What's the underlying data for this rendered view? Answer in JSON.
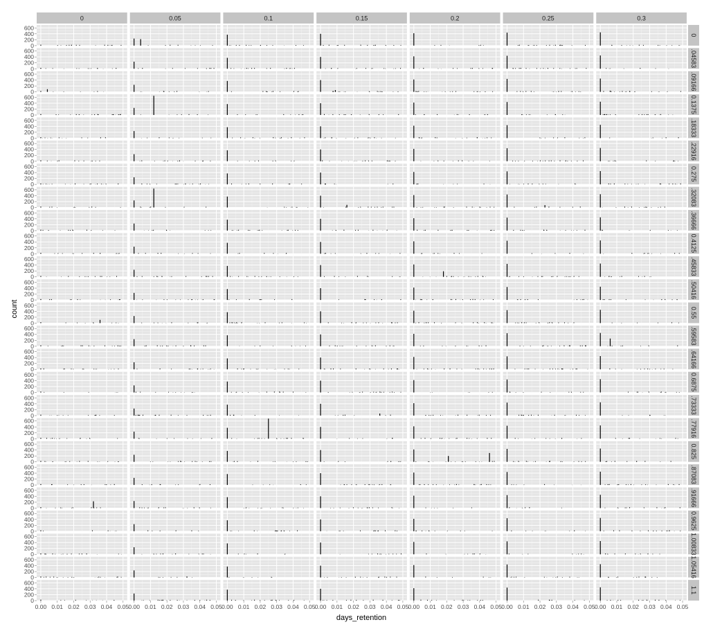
{
  "chart_data": {
    "type": "bar",
    "facet_layout": "grid",
    "column_facets": [
      "0",
      "0.05",
      "0.1",
      "0.15",
      "0.2",
      "0.25",
      "0.3"
    ],
    "row_facets": [
      "0",
      ".04583",
      ".09166",
      "0.1375",
      ".18333",
      ".22916",
      "0.275",
      ".32083",
      ".36666",
      "0.4125",
      ".45833",
      ".50416",
      "0.55",
      ".59583",
      ".64166",
      "0.6875",
      ".73333",
      ".77916",
      "0.825",
      ".87083",
      ".91666",
      "0.9625",
      "1.00833",
      "1.05416",
      "1.1"
    ],
    "xlabel": "days_retention",
    "ylabel": "count",
    "x_ticks": [
      "0.00",
      "0.01",
      "0.02",
      "0.03",
      "0.04",
      "0.05"
    ],
    "x_tick_values": [
      0,
      0.01,
      0.02,
      0.03,
      0.04,
      0.05
    ],
    "y_ticks": [
      "0",
      "200",
      "400",
      "600"
    ],
    "y_tick_values": [
      0,
      200,
      400,
      600
    ],
    "xlim": [
      -0.0025,
      0.0525
    ],
    "ylim": [
      0,
      700
    ],
    "default_spike": {
      "x": 0.0,
      "value": 280
    },
    "column_spikes": [
      {
        "x": 0.0,
        "value": 30
      },
      {
        "x": 0.0,
        "value": 240
      },
      {
        "x": 0.0,
        "value": 370
      },
      {
        "x": 0.0,
        "value": 400
      },
      {
        "x": 0.0,
        "value": 420
      },
      {
        "x": 0.0,
        "value": 440
      },
      {
        "x": 0.0,
        "value": 450
      }
    ],
    "notable_bars": [
      {
        "row": 0,
        "col": 1,
        "x": 0.004,
        "value": 220
      },
      {
        "row": 2,
        "col": 0,
        "x": 0.004,
        "value": 90
      },
      {
        "row": 2,
        "col": 3,
        "x": 0.009,
        "value": 60
      },
      {
        "row": 3,
        "col": 1,
        "x": 0.012,
        "value": 650
      },
      {
        "row": 7,
        "col": 1,
        "x": 0.012,
        "value": 640
      },
      {
        "row": 7,
        "col": 3,
        "x": 0.016,
        "value": 90
      },
      {
        "row": 7,
        "col": 5,
        "x": 0.023,
        "value": 80
      },
      {
        "row": 10,
        "col": 4,
        "x": 0.018,
        "value": 190
      },
      {
        "row": 12,
        "col": 0,
        "x": 0.036,
        "value": 110
      },
      {
        "row": 13,
        "col": 6,
        "x": 0.006,
        "value": 260
      },
      {
        "row": 17,
        "col": 2,
        "x": 0.025,
        "value": 680
      },
      {
        "row": 18,
        "col": 4,
        "x": 0.021,
        "value": 200
      },
      {
        "row": 18,
        "col": 4,
        "x": 0.046,
        "value": 300
      },
      {
        "row": 20,
        "col": 0,
        "x": 0.032,
        "value": 230
      },
      {
        "row": 2,
        "col": 6,
        "x": 0.006,
        "value": 40
      },
      {
        "row": 16,
        "col": 3,
        "x": 0.036,
        "value": 70
      }
    ],
    "grid": true,
    "legend": "none"
  }
}
